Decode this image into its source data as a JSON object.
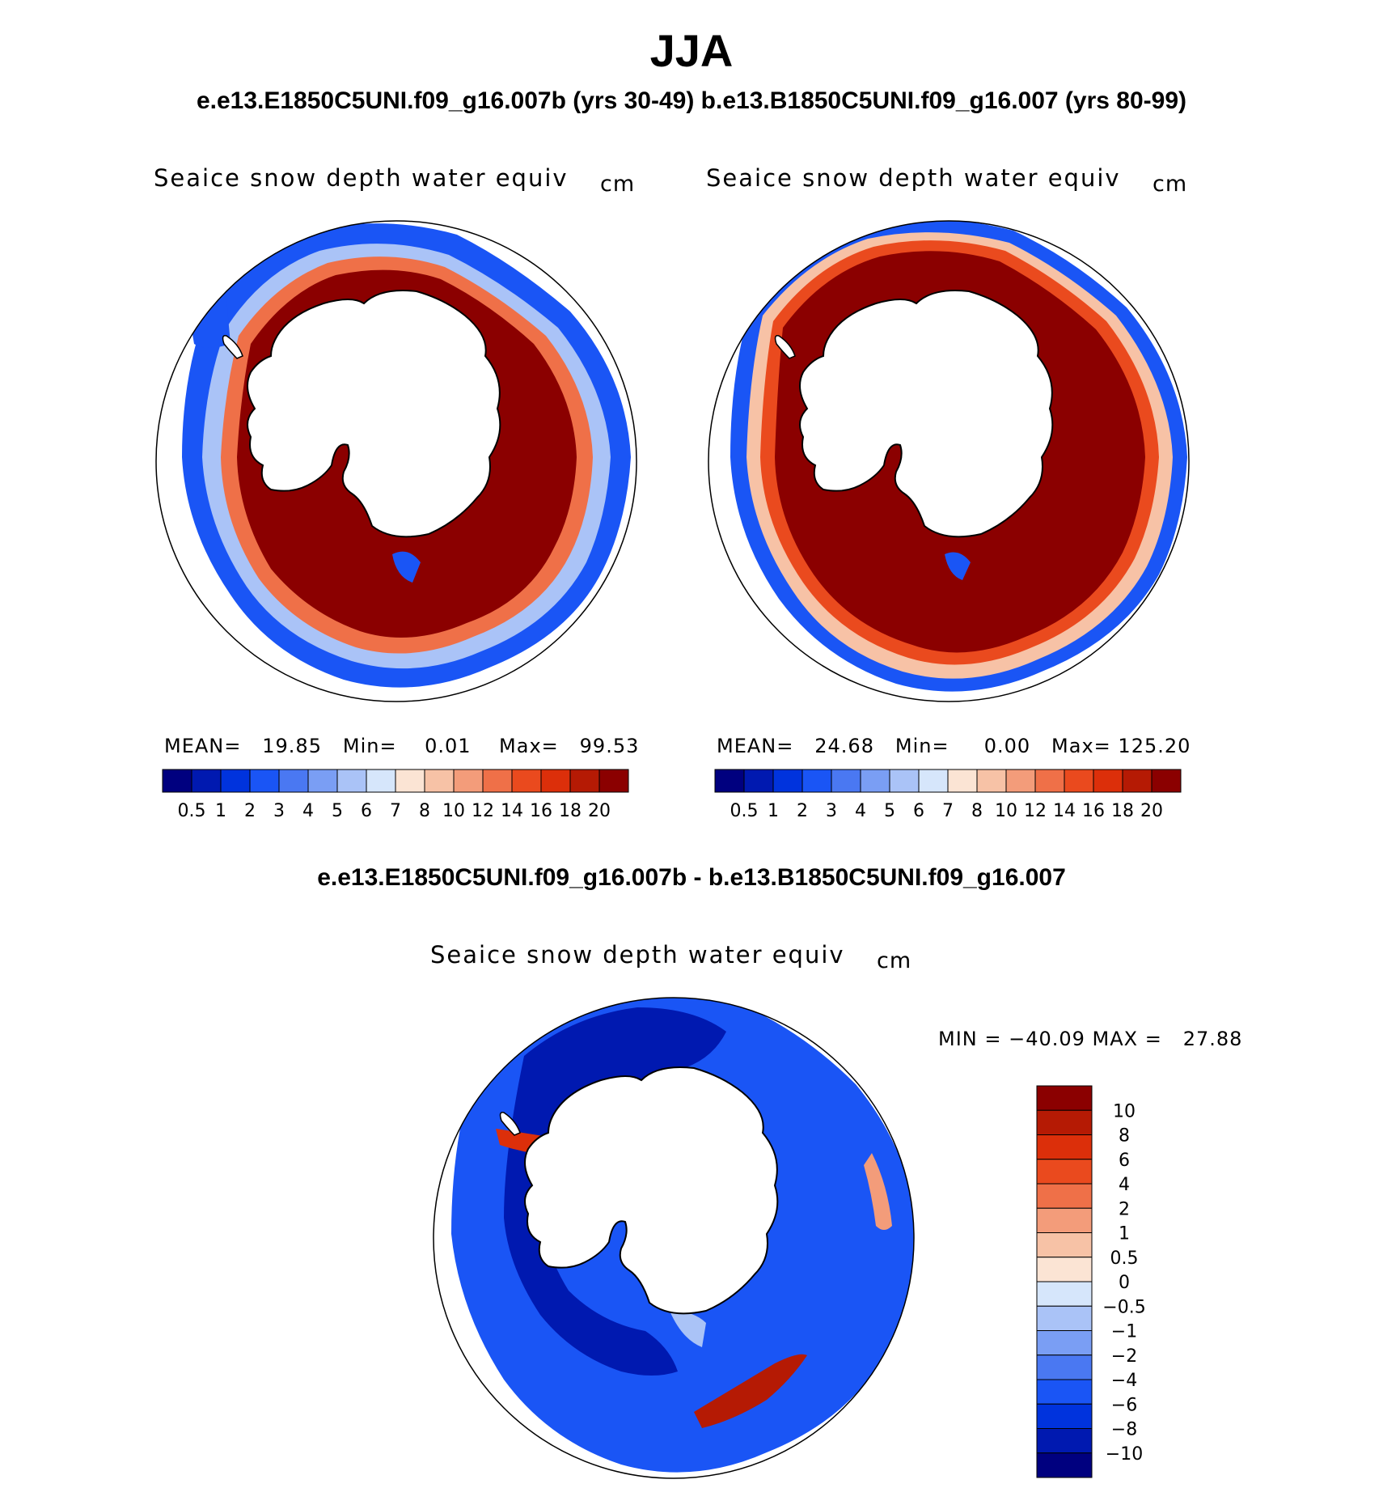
{
  "header": {
    "title": "JJA",
    "subtitle": "e.e13.E1850C5UNI.f09_g16.007b (yrs 30-49)  b.e13.B1850C5UNI.f09_g16.007 (yrs 80-99)",
    "diff_title": "e.e13.E1850C5UNI.f09_g16.007b - b.e13.B1850C5UNI.f09_g16.007"
  },
  "panels": [
    {
      "label": "Seaice snow depth water equiv",
      "unit": "cm",
      "stats": {
        "mean_label": "MEAN=",
        "mean": "19.85",
        "min_label": "Min=",
        "min": "0.01",
        "max_label": "Max=",
        "max": "99.53"
      }
    },
    {
      "label": "Seaice snow depth water equiv",
      "unit": "cm",
      "stats": {
        "mean_label": "MEAN=",
        "mean": "24.68",
        "min_label": "Min=",
        "min": "0.00",
        "max_label": "Max=",
        "max": "125.20"
      }
    }
  ],
  "diff_panel": {
    "label": "Seaice snow depth water equiv",
    "unit": "cm",
    "minmax": "MIN = −40.09 MAX =   27.88"
  },
  "chart_data": [
    {
      "type": "heatmap",
      "name": "e.e13.E1850C5UNI.f09_g16.007b JJA snow depth",
      "projection": "south-polar-stereographic",
      "colorbar_levels": [
        "0.5",
        "1",
        "2",
        "3",
        "4",
        "5",
        "6",
        "7",
        "8",
        "10",
        "12",
        "14",
        "16",
        "18",
        "20"
      ],
      "colorbar_colors": [
        "#00007f",
        "#0019b0",
        "#0033dd",
        "#1a55f5",
        "#4a78f2",
        "#7a9ef4",
        "#aac3f7",
        "#d6e6fb",
        "#fbe4d4",
        "#f7c2a6",
        "#f39c7a",
        "#ef7048",
        "#ea4a1e",
        "#dc2f0a",
        "#b51a04",
        "#8b0000"
      ],
      "mean": 19.85,
      "min": 0.01,
      "max": 99.53
    },
    {
      "type": "heatmap",
      "name": "b.e13.B1850C5UNI.f09_g16.007 JJA snow depth",
      "projection": "south-polar-stereographic",
      "colorbar_levels": [
        "0.5",
        "1",
        "2",
        "3",
        "4",
        "5",
        "6",
        "7",
        "8",
        "10",
        "12",
        "14",
        "16",
        "18",
        "20"
      ],
      "colorbar_colors": [
        "#00007f",
        "#0019b0",
        "#0033dd",
        "#1a55f5",
        "#4a78f2",
        "#7a9ef4",
        "#aac3f7",
        "#d6e6fb",
        "#fbe4d4",
        "#f7c2a6",
        "#f39c7a",
        "#ef7048",
        "#ea4a1e",
        "#dc2f0a",
        "#b51a04",
        "#8b0000"
      ],
      "mean": 24.68,
      "min": 0.0,
      "max": 125.2
    },
    {
      "type": "heatmap",
      "name": "difference",
      "projection": "south-polar-stereographic",
      "colorbar_levels": [
        "10",
        "8",
        "6",
        "4",
        "2",
        "1",
        "0.5",
        "0",
        "−0.5",
        "−1",
        "−2",
        "−4",
        "−6",
        "−8",
        "−10"
      ],
      "colorbar_colors": [
        "#8b0000",
        "#b51a04",
        "#dc2f0a",
        "#ea4a1e",
        "#ef7048",
        "#f39c7a",
        "#f7c2a6",
        "#fbe4d4",
        "#d6e6fb",
        "#aac3f7",
        "#7a9ef4",
        "#4a78f2",
        "#1a55f5",
        "#0033dd",
        "#0019b0",
        "#00007f"
      ],
      "min": -40.09,
      "max": 27.88
    }
  ],
  "colors": {
    "land": "#ffffff",
    "coast": "#000000"
  }
}
